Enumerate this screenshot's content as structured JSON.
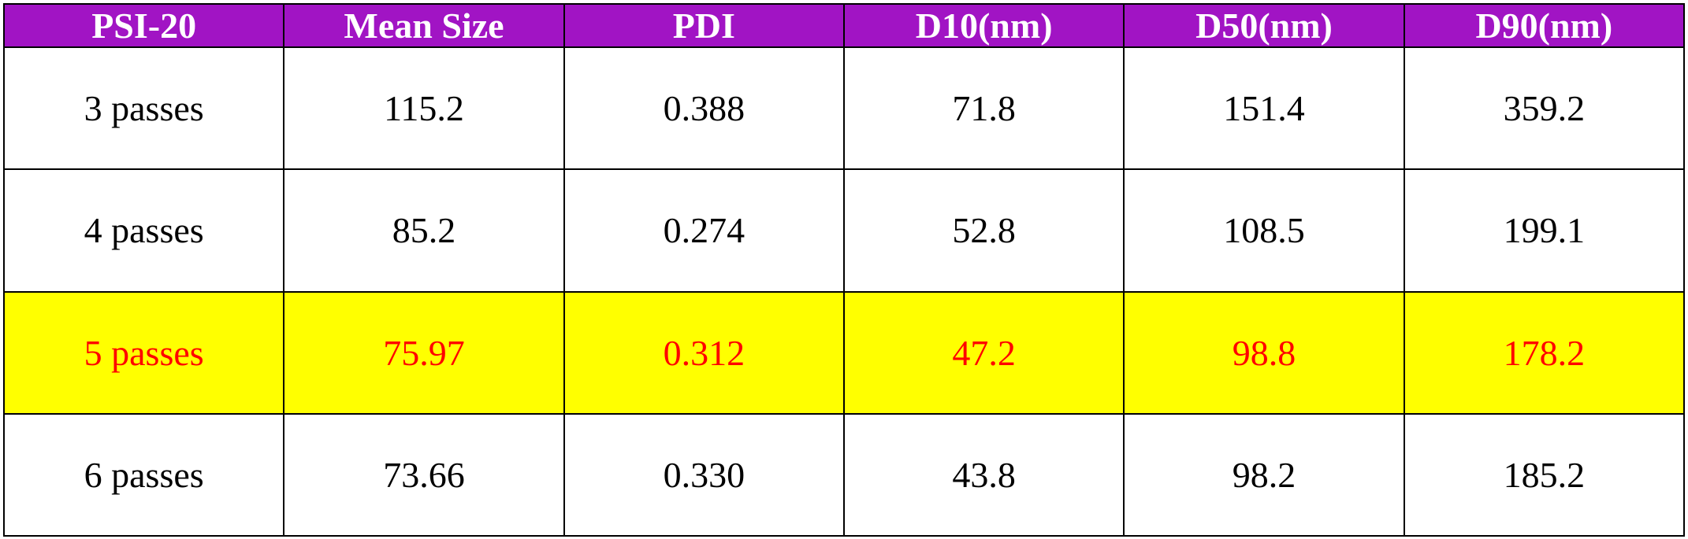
{
  "table": {
    "header": [
      "PSI-20",
      "Mean Size",
      "PDI",
      "D10(nm)",
      "D50(nm)",
      "D90(nm)"
    ],
    "rows": [
      [
        "3 passes",
        "115.2",
        "0.388",
        "71.8",
        "151.4",
        "359.2"
      ],
      [
        "4 passes",
        "85.2",
        "0.274",
        "52.8",
        "108.5",
        "199.1"
      ],
      [
        "5 passes",
        "75.97",
        "0.312",
        "47.2",
        "98.8",
        "178.2"
      ],
      [
        "6 passes",
        "73.66",
        "0.330",
        "43.8",
        "98.2",
        "185.2"
      ]
    ]
  }
}
